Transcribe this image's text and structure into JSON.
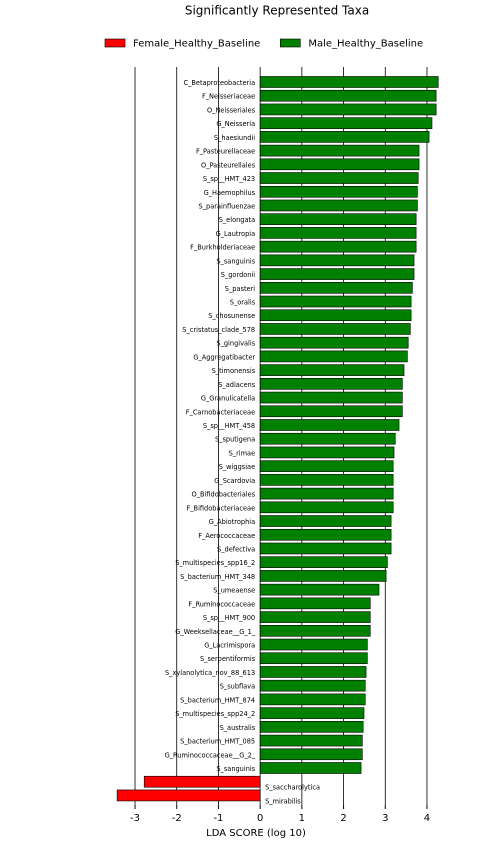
{
  "chart_data": {
    "type": "barh",
    "title": "Significantly Represented Taxa",
    "xlabel": "LDA SCORE (log 10)",
    "categories": [
      "C_Betaproteobacteria",
      "F_Neisseriaceae",
      "O_Neisseriales",
      "G_Neisseria",
      "S_haesiundii",
      "F_Pasteurellaceae",
      "O_Pasteurellales",
      "S_sp__HMT_423",
      "G_Haemophilus",
      "S_parainfluenzae",
      "S_elongata",
      "G_Lautropia",
      "F_Burkholderiaceae",
      "S_sanguinis",
      "S_gordonii",
      "S_pasteri",
      "S_oralis",
      "S_chosunense",
      "S_cristatus_clade_578",
      "S_gingivalis",
      "G_Aggregatibacter",
      "S_timonensis",
      "S_adiacens",
      "G_Granulicatella",
      "F_Carnobacteriaceae",
      "S_sp__HMT_458",
      "S_sputigena",
      "S_rimae",
      "S_wiggsiae",
      "G_Scardovia",
      "O_Bifidobacteriales",
      "F_Bifidobacteriaceae",
      "G_Abiotrophia",
      "F_Aerococcaceae",
      "S_defectiva",
      "S_multispecies_spp16_2",
      "S_bacterium_HMT_348",
      "S_umeaense",
      "F_Ruminococcaceae",
      "S_sp__HMT_900",
      "G_Weeksellaceae__G_1_",
      "G_Lacrimispora",
      "S_serpentiformis",
      "S_xylanolytica_nov_88_613",
      "S_subflava",
      "S_bacterium_HMT_874",
      "S_multispecies_spp24_2",
      "S_australis",
      "S_bacterium_HMT_085",
      "G_Ruminococcaceae__G_2_",
      "S_sanguinis",
      "S_saccharolytica",
      "S_mirabilis"
    ],
    "series": [
      {
        "name": "Female_Healthy_Baseline",
        "color": "#ff0000",
        "values": [
          null,
          null,
          null,
          null,
          null,
          null,
          null,
          null,
          null,
          null,
          null,
          null,
          null,
          null,
          null,
          null,
          null,
          null,
          null,
          null,
          null,
          null,
          null,
          null,
          null,
          null,
          null,
          null,
          null,
          null,
          null,
          null,
          null,
          null,
          null,
          null,
          null,
          null,
          null,
          null,
          null,
          null,
          null,
          null,
          null,
          null,
          null,
          null,
          null,
          null,
          null,
          -2.78,
          -3.43
        ]
      },
      {
        "name": "Male_Healthy_Baseline",
        "color": "#008000",
        "values": [
          4.27,
          4.22,
          4.22,
          4.12,
          4.05,
          3.81,
          3.81,
          3.79,
          3.77,
          3.77,
          3.74,
          3.74,
          3.74,
          3.69,
          3.69,
          3.65,
          3.62,
          3.62,
          3.6,
          3.55,
          3.53,
          3.45,
          3.41,
          3.41,
          3.41,
          3.33,
          3.24,
          3.21,
          3.19,
          3.19,
          3.19,
          3.19,
          3.14,
          3.14,
          3.14,
          3.05,
          3.02,
          2.85,
          2.64,
          2.64,
          2.64,
          2.57,
          2.57,
          2.54,
          2.52,
          2.52,
          2.49,
          2.47,
          2.45,
          2.45,
          2.42,
          null,
          null
        ]
      }
    ],
    "xlim": [
      -3.6,
      4.6
    ],
    "xticks": [
      -3,
      -2,
      -1,
      0,
      1,
      2,
      3,
      4
    ],
    "grid": true
  }
}
